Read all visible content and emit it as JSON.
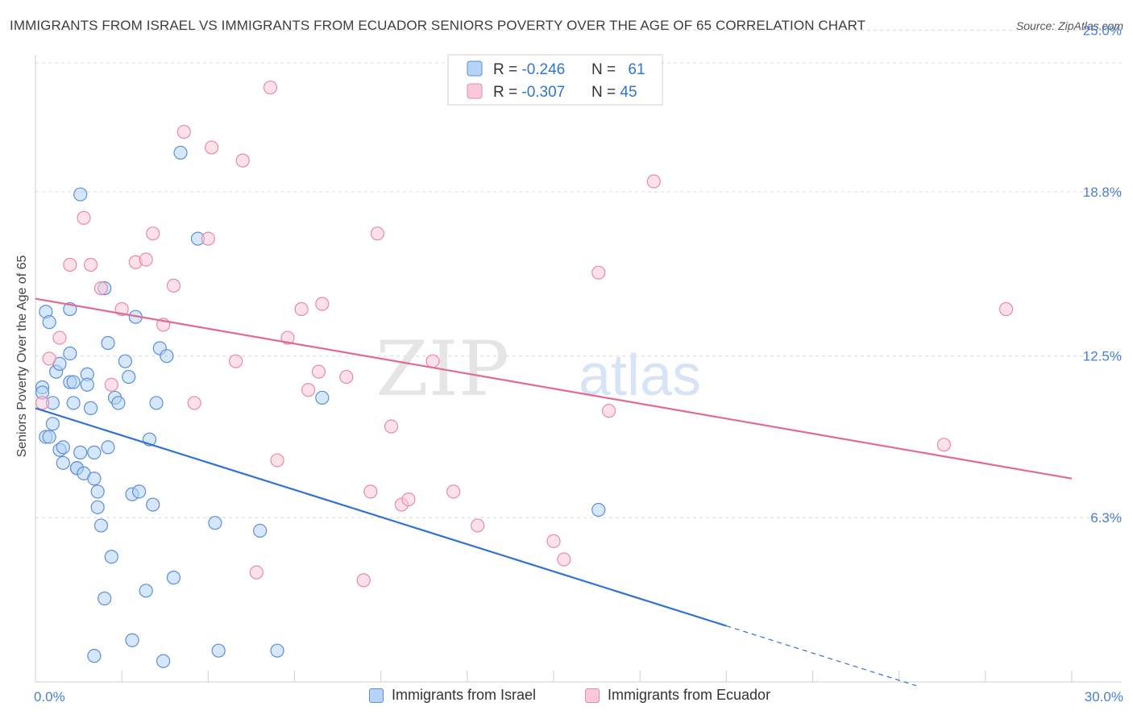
{
  "header": {
    "title": "IMMIGRANTS FROM ISRAEL VS IMMIGRANTS FROM ECUADOR SENIORS POVERTY OVER THE AGE OF 65 CORRELATION CHART",
    "source": "Source: ZipAtlas.com"
  },
  "watermark": {
    "zip": "ZIP",
    "atlas": "atlas"
  },
  "legend": {
    "israel": {
      "r_label": "R = ",
      "r_value": "-0.246",
      "n_label": "N = ",
      "n_value": "61"
    },
    "ecuador": {
      "r_label": "R = ",
      "r_value": "-0.307",
      "n_label": "N = ",
      "n_value": "45"
    }
  },
  "colors": {
    "israel_fill": "#b7d3f5",
    "israel_stroke": "#5b8fd6",
    "israel_line": "#2f74d0",
    "ecuador_fill": "#f9c9d7",
    "ecuador_stroke": "#e98aa8",
    "ecuador_line": "#e06a92",
    "tick_text": "#4a7fd0",
    "grid": "#d8d8d8"
  },
  "chart_data": {
    "type": "scatter",
    "title": "IMMIGRANTS FROM ISRAEL VS IMMIGRANTS FROM ECUADOR SENIORS POVERTY OVER THE AGE OF 65 CORRELATION CHART",
    "xlabel": "",
    "ylabel": "Seniors Poverty Over the Age of 65",
    "xlim": [
      0,
      30
    ],
    "ylim": [
      0,
      25.6
    ],
    "x_tick_labels": [
      {
        "value": 0,
        "label": "0.0%"
      },
      {
        "value": 30,
        "label": "30.0%"
      }
    ],
    "y_tick_labels": [
      {
        "value": 6.3,
        "label": "6.3%"
      },
      {
        "value": 12.5,
        "label": "12.5%"
      },
      {
        "value": 18.8,
        "label": "18.8%"
      },
      {
        "value": 25.0,
        "label": "25.0%"
      }
    ],
    "series": [
      {
        "name": "Immigrants from Israel",
        "regression": {
          "x0": 0.0,
          "y0": 10.5,
          "x1": 20.0,
          "y1": 2.15,
          "dashed_to_x": 25.5
        },
        "points": [
          [
            0.2,
            11.3
          ],
          [
            0.3,
            14.2
          ],
          [
            0.4,
            13.8
          ],
          [
            0.5,
            10.7
          ],
          [
            0.6,
            11.9
          ],
          [
            0.7,
            12.2
          ],
          [
            0.3,
            9.4
          ],
          [
            0.4,
            9.4
          ],
          [
            0.5,
            9.9
          ],
          [
            0.7,
            8.9
          ],
          [
            0.8,
            8.4
          ],
          [
            0.8,
            9.0
          ],
          [
            1.0,
            11.5
          ],
          [
            1.0,
            14.3
          ],
          [
            1.0,
            12.6
          ],
          [
            1.1,
            10.7
          ],
          [
            1.1,
            11.5
          ],
          [
            1.2,
            8.2
          ],
          [
            1.2,
            8.2
          ],
          [
            1.3,
            8.8
          ],
          [
            1.4,
            8.0
          ],
          [
            1.5,
            11.8
          ],
          [
            1.5,
            11.4
          ],
          [
            1.6,
            10.5
          ],
          [
            1.7,
            8.8
          ],
          [
            1.7,
            7.8
          ],
          [
            1.8,
            7.3
          ],
          [
            1.8,
            6.7
          ],
          [
            1.9,
            6.0
          ],
          [
            2.0,
            15.1
          ],
          [
            2.1,
            13.0
          ],
          [
            2.1,
            9.0
          ],
          [
            2.3,
            10.9
          ],
          [
            2.4,
            10.7
          ],
          [
            2.6,
            12.3
          ],
          [
            2.7,
            11.7
          ],
          [
            2.8,
            7.2
          ],
          [
            2.9,
            14.0
          ],
          [
            3.0,
            7.3
          ],
          [
            3.2,
            3.5
          ],
          [
            3.3,
            9.3
          ],
          [
            3.4,
            6.8
          ],
          [
            3.5,
            10.7
          ],
          [
            3.6,
            12.8
          ],
          [
            3.8,
            12.5
          ],
          [
            4.0,
            4.0
          ],
          [
            4.2,
            20.3
          ],
          [
            4.7,
            17.0
          ],
          [
            5.2,
            6.1
          ],
          [
            6.5,
            5.8
          ],
          [
            8.3,
            10.9
          ],
          [
            16.3,
            6.6
          ],
          [
            1.3,
            18.7
          ],
          [
            2.0,
            3.2
          ],
          [
            2.2,
            4.8
          ],
          [
            2.8,
            1.6
          ],
          [
            3.7,
            0.8
          ],
          [
            1.7,
            1.0
          ],
          [
            5.3,
            1.2
          ],
          [
            7.0,
            1.2
          ],
          [
            0.2,
            11.1
          ]
        ]
      },
      {
        "name": "Immigrants from Ecuador",
        "regression": {
          "x0": 0.0,
          "y0": 14.7,
          "x1": 30.0,
          "y1": 7.8
        },
        "points": [
          [
            0.2,
            10.7
          ],
          [
            0.4,
            12.4
          ],
          [
            0.7,
            13.2
          ],
          [
            1.0,
            16.0
          ],
          [
            1.4,
            17.8
          ],
          [
            1.6,
            16.0
          ],
          [
            1.9,
            15.1
          ],
          [
            2.2,
            11.4
          ],
          [
            2.5,
            14.3
          ],
          [
            2.9,
            16.1
          ],
          [
            3.2,
            16.2
          ],
          [
            3.4,
            17.2
          ],
          [
            3.7,
            13.7
          ],
          [
            4.0,
            15.2
          ],
          [
            4.3,
            21.1
          ],
          [
            4.6,
            10.7
          ],
          [
            5.0,
            17.0
          ],
          [
            5.1,
            20.5
          ],
          [
            5.8,
            12.3
          ],
          [
            6.0,
            20.0
          ],
          [
            6.4,
            4.2
          ],
          [
            6.8,
            22.8
          ],
          [
            7.0,
            8.5
          ],
          [
            7.3,
            13.2
          ],
          [
            7.7,
            14.3
          ],
          [
            7.9,
            11.2
          ],
          [
            8.2,
            11.9
          ],
          [
            8.3,
            14.5
          ],
          [
            9.0,
            11.7
          ],
          [
            9.5,
            3.9
          ],
          [
            9.7,
            7.3
          ],
          [
            9.9,
            17.2
          ],
          [
            10.3,
            9.8
          ],
          [
            10.6,
            6.8
          ],
          [
            10.8,
            7.0
          ],
          [
            11.5,
            12.3
          ],
          [
            12.1,
            7.3
          ],
          [
            12.8,
            6.0
          ],
          [
            15.0,
            5.4
          ],
          [
            15.3,
            4.7
          ],
          [
            16.3,
            15.7
          ],
          [
            16.6,
            10.4
          ],
          [
            17.9,
            19.2
          ],
          [
            26.3,
            9.1
          ],
          [
            28.1,
            14.3
          ]
        ]
      }
    ]
  },
  "bottom_legend": {
    "israel_label": "Immigrants from Israel",
    "ecuador_label": "Immigrants from Ecuador"
  }
}
